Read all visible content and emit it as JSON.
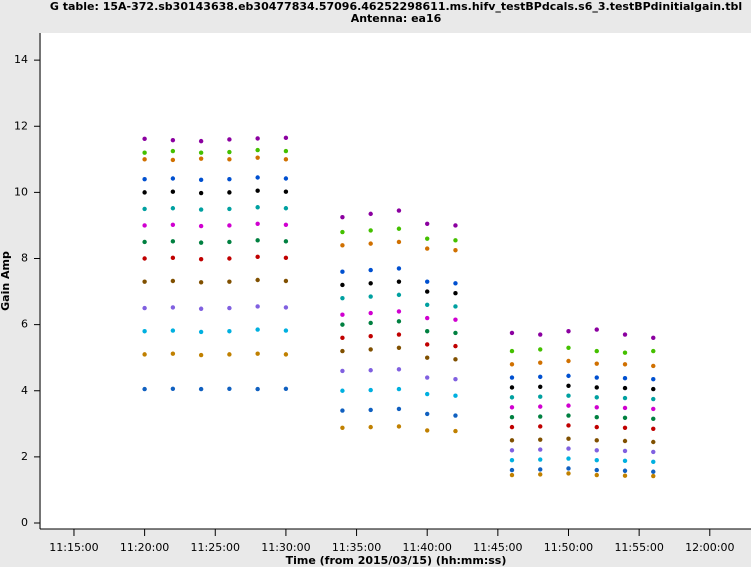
{
  "chart_data": {
    "type": "scatter",
    "title": "G table: 15A-372.sb30143638.eb30477834.57096.46252298611.ms.hifv_testBPdcals.s6_3.testBPdinitialgain.tbl",
    "subtitle": "Antenna: ea16",
    "xlabel": "Time (from 2015/03/15) (hh:mm:ss)",
    "ylabel": "Gain Amp",
    "xlim": [
      "11:12:40",
      "12:02:55"
    ],
    "xticks": [
      "11:15:00",
      "11:20:00",
      "11:25:00",
      "11:30:00",
      "11:35:00",
      "11:40:00",
      "11:45:00",
      "11:50:00",
      "11:55:00",
      "12:00:00"
    ],
    "ylim": [
      0,
      14.73
    ],
    "yticks": [
      0,
      2,
      4,
      6,
      8,
      10,
      12,
      14
    ],
    "x": [
      "11:20:00",
      "11:22:00",
      "11:24:00",
      "11:26:00",
      "11:28:00",
      "11:30:00",
      "11:34:00",
      "11:36:00",
      "11:38:00",
      "11:40:00",
      "11:42:00",
      "11:46:00",
      "11:48:00",
      "11:50:00",
      "11:52:00",
      "11:54:00",
      "11:56:00"
    ],
    "series": [
      {
        "color": "#8b00a0",
        "values": [
          11.62,
          11.58,
          11.55,
          11.6,
          11.63,
          11.65,
          9.25,
          9.35,
          9.45,
          9.05,
          9.0,
          5.75,
          5.7,
          5.8,
          5.85,
          5.7,
          5.6
        ]
      },
      {
        "color": "#44c000",
        "values": [
          11.2,
          11.25,
          11.2,
          11.22,
          11.28,
          11.25,
          8.8,
          8.85,
          8.9,
          8.6,
          8.55,
          5.2,
          5.25,
          5.3,
          5.2,
          5.15,
          5.2
        ]
      },
      {
        "color": "#d07000",
        "values": [
          11.0,
          10.98,
          11.02,
          11.0,
          11.05,
          11.0,
          8.4,
          8.45,
          8.5,
          8.3,
          8.25,
          4.8,
          4.85,
          4.9,
          4.82,
          4.8,
          4.75
        ]
      },
      {
        "color": "#0050d0",
        "values": [
          10.4,
          10.42,
          10.38,
          10.4,
          10.45,
          10.42,
          7.6,
          7.65,
          7.7,
          7.3,
          7.25,
          4.4,
          4.42,
          4.45,
          4.4,
          4.38,
          4.35
        ]
      },
      {
        "color": "#000000",
        "values": [
          10.0,
          10.02,
          9.98,
          10.0,
          10.05,
          10.02,
          7.2,
          7.25,
          7.3,
          7.0,
          6.95,
          4.1,
          4.12,
          4.15,
          4.1,
          4.08,
          4.05
        ]
      },
      {
        "color": "#00a0a0",
        "values": [
          9.5,
          9.52,
          9.48,
          9.5,
          9.55,
          9.52,
          6.8,
          6.85,
          6.9,
          6.6,
          6.55,
          3.8,
          3.82,
          3.85,
          3.8,
          3.78,
          3.75
        ]
      },
      {
        "color": "#d000d0",
        "values": [
          9.0,
          9.02,
          8.98,
          9.0,
          9.05,
          9.02,
          6.3,
          6.35,
          6.4,
          6.2,
          6.15,
          3.5,
          3.52,
          3.55,
          3.5,
          3.48,
          3.45
        ]
      },
      {
        "color": "#008040",
        "values": [
          8.5,
          8.52,
          8.48,
          8.5,
          8.55,
          8.52,
          6.0,
          6.05,
          6.1,
          5.8,
          5.75,
          3.2,
          3.22,
          3.25,
          3.2,
          3.18,
          3.15
        ]
      },
      {
        "color": "#c00000",
        "values": [
          8.0,
          8.02,
          7.98,
          8.0,
          8.05,
          8.02,
          5.6,
          5.65,
          5.7,
          5.4,
          5.35,
          2.9,
          2.92,
          2.95,
          2.9,
          2.88,
          2.85
        ]
      },
      {
        "color": "#805000",
        "values": [
          7.3,
          7.32,
          7.28,
          7.3,
          7.35,
          7.32,
          5.2,
          5.25,
          5.3,
          5.0,
          4.95,
          2.5,
          2.52,
          2.55,
          2.5,
          2.48,
          2.45
        ]
      },
      {
        "color": "#8060e0",
        "values": [
          6.5,
          6.52,
          6.48,
          6.5,
          6.55,
          6.52,
          4.6,
          4.62,
          4.65,
          4.4,
          4.35,
          2.2,
          2.22,
          2.25,
          2.2,
          2.18,
          2.15
        ]
      },
      {
        "color": "#00b0e0",
        "values": [
          5.8,
          5.82,
          5.78,
          5.8,
          5.85,
          5.82,
          4.0,
          4.02,
          4.05,
          3.9,
          3.85,
          1.9,
          1.92,
          1.95,
          1.9,
          1.88,
          1.85
        ]
      },
      {
        "color": "#1060c0",
        "values": [
          4.05,
          4.06,
          4.05,
          4.06,
          4.05,
          4.06,
          3.4,
          3.42,
          3.45,
          3.3,
          3.25,
          1.6,
          1.62,
          1.65,
          1.6,
          1.58,
          1.55
        ]
      },
      {
        "color": "#c08000",
        "values": [
          5.1,
          5.12,
          5.08,
          5.1,
          5.12,
          5.1,
          2.88,
          2.9,
          2.92,
          2.8,
          2.78,
          1.45,
          1.47,
          1.5,
          1.45,
          1.43,
          1.42
        ]
      }
    ]
  }
}
